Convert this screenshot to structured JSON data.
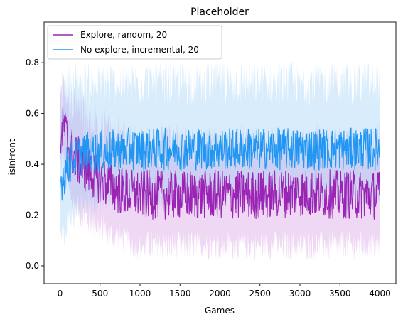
{
  "chart_data": {
    "type": "line",
    "title": "Placeholder",
    "xlabel": "Games",
    "ylabel": "isInFront",
    "xlim": [
      -200,
      4200
    ],
    "ylim": [
      -0.07,
      0.96
    ],
    "x_ticks": [
      0,
      500,
      1000,
      1500,
      2000,
      2500,
      3000,
      3500,
      4000
    ],
    "y_ticks": [
      0.0,
      0.2,
      0.4,
      0.6,
      0.8
    ],
    "y_tick_labels": [
      "0.0",
      "0.2",
      "0.4",
      "0.6",
      "0.8"
    ],
    "grid": false,
    "legend_position": "top-left",
    "x_range": [
      0,
      4000
    ],
    "series": [
      {
        "name": "Explore, random, 20",
        "color": "#9b24b5",
        "band_color": "#c77dd6",
        "x": [
          0,
          50,
          100,
          200,
          400,
          600,
          800,
          1000,
          1500,
          2000,
          2500,
          3000,
          3500,
          4000
        ],
        "mean": [
          0.5,
          0.55,
          0.48,
          0.42,
          0.36,
          0.32,
          0.29,
          0.28,
          0.28,
          0.28,
          0.28,
          0.29,
          0.28,
          0.28
        ],
        "noise": 0.07,
        "band_low": [
          0.4,
          0.42,
          0.3,
          0.22,
          0.17,
          0.13,
          0.1,
          0.08,
          0.08,
          0.08,
          0.08,
          0.08,
          0.08,
          0.08
        ],
        "band_high": [
          0.62,
          0.7,
          0.66,
          0.62,
          0.55,
          0.52,
          0.5,
          0.48,
          0.48,
          0.48,
          0.48,
          0.48,
          0.48,
          0.48
        ]
      },
      {
        "name": "No explore, incremental, 20",
        "color": "#2196f3",
        "band_color": "#7fbff5",
        "x": [
          0,
          50,
          100,
          200,
          400,
          600,
          800,
          1000,
          1500,
          2000,
          2500,
          3000,
          3500,
          4000
        ],
        "mean": [
          0.32,
          0.36,
          0.4,
          0.43,
          0.45,
          0.45,
          0.46,
          0.46,
          0.46,
          0.46,
          0.46,
          0.46,
          0.46,
          0.46
        ],
        "noise": 0.06,
        "band_low": [
          0.1,
          0.13,
          0.18,
          0.22,
          0.25,
          0.26,
          0.27,
          0.27,
          0.27,
          0.27,
          0.27,
          0.27,
          0.27,
          0.27
        ],
        "band_high": [
          0.65,
          0.7,
          0.72,
          0.72,
          0.72,
          0.72,
          0.72,
          0.72,
          0.72,
          0.72,
          0.72,
          0.72,
          0.72,
          0.72
        ]
      }
    ]
  }
}
